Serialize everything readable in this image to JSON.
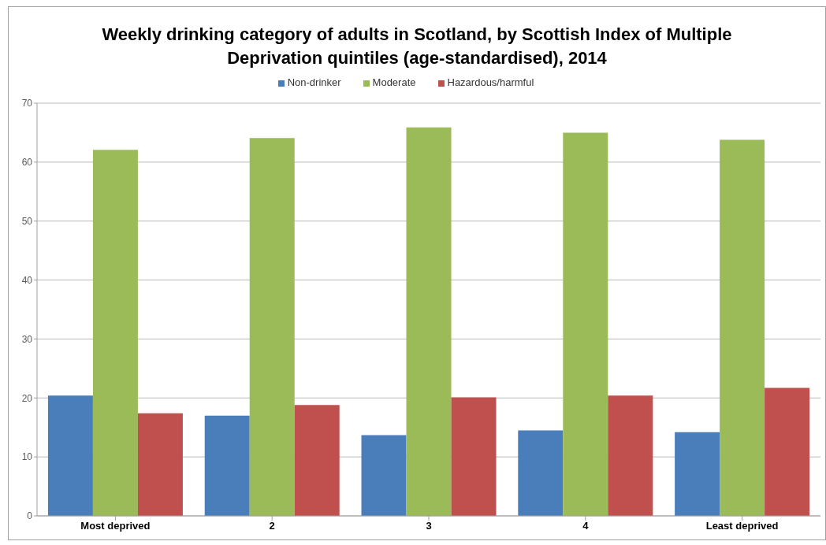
{
  "chart_data": {
    "type": "bar",
    "title": "Weekly drinking category of adults in Scotland, by Scottish Index of Multiple Deprivation quintiles (age-standardised), 2014",
    "categories": [
      "Most deprived",
      "2",
      "3",
      "4",
      "Least deprived"
    ],
    "series": [
      {
        "name": "Non-drinker",
        "color": "#4a7ebb",
        "values": [
          20.4,
          17.0,
          13.7,
          14.5,
          14.2
        ]
      },
      {
        "name": "Moderate",
        "color": "#9bbb59",
        "values": [
          62.1,
          64.1,
          65.9,
          65.0,
          63.8
        ]
      },
      {
        "name": "Hazardous/harmful",
        "color": "#c0504d",
        "values": [
          17.4,
          18.8,
          20.1,
          20.4,
          21.7
        ]
      }
    ],
    "ylim": [
      0,
      70
    ],
    "yticks": [
      0,
      10,
      20,
      30,
      40,
      50,
      60,
      70
    ],
    "grid": "y",
    "legend": "top"
  }
}
